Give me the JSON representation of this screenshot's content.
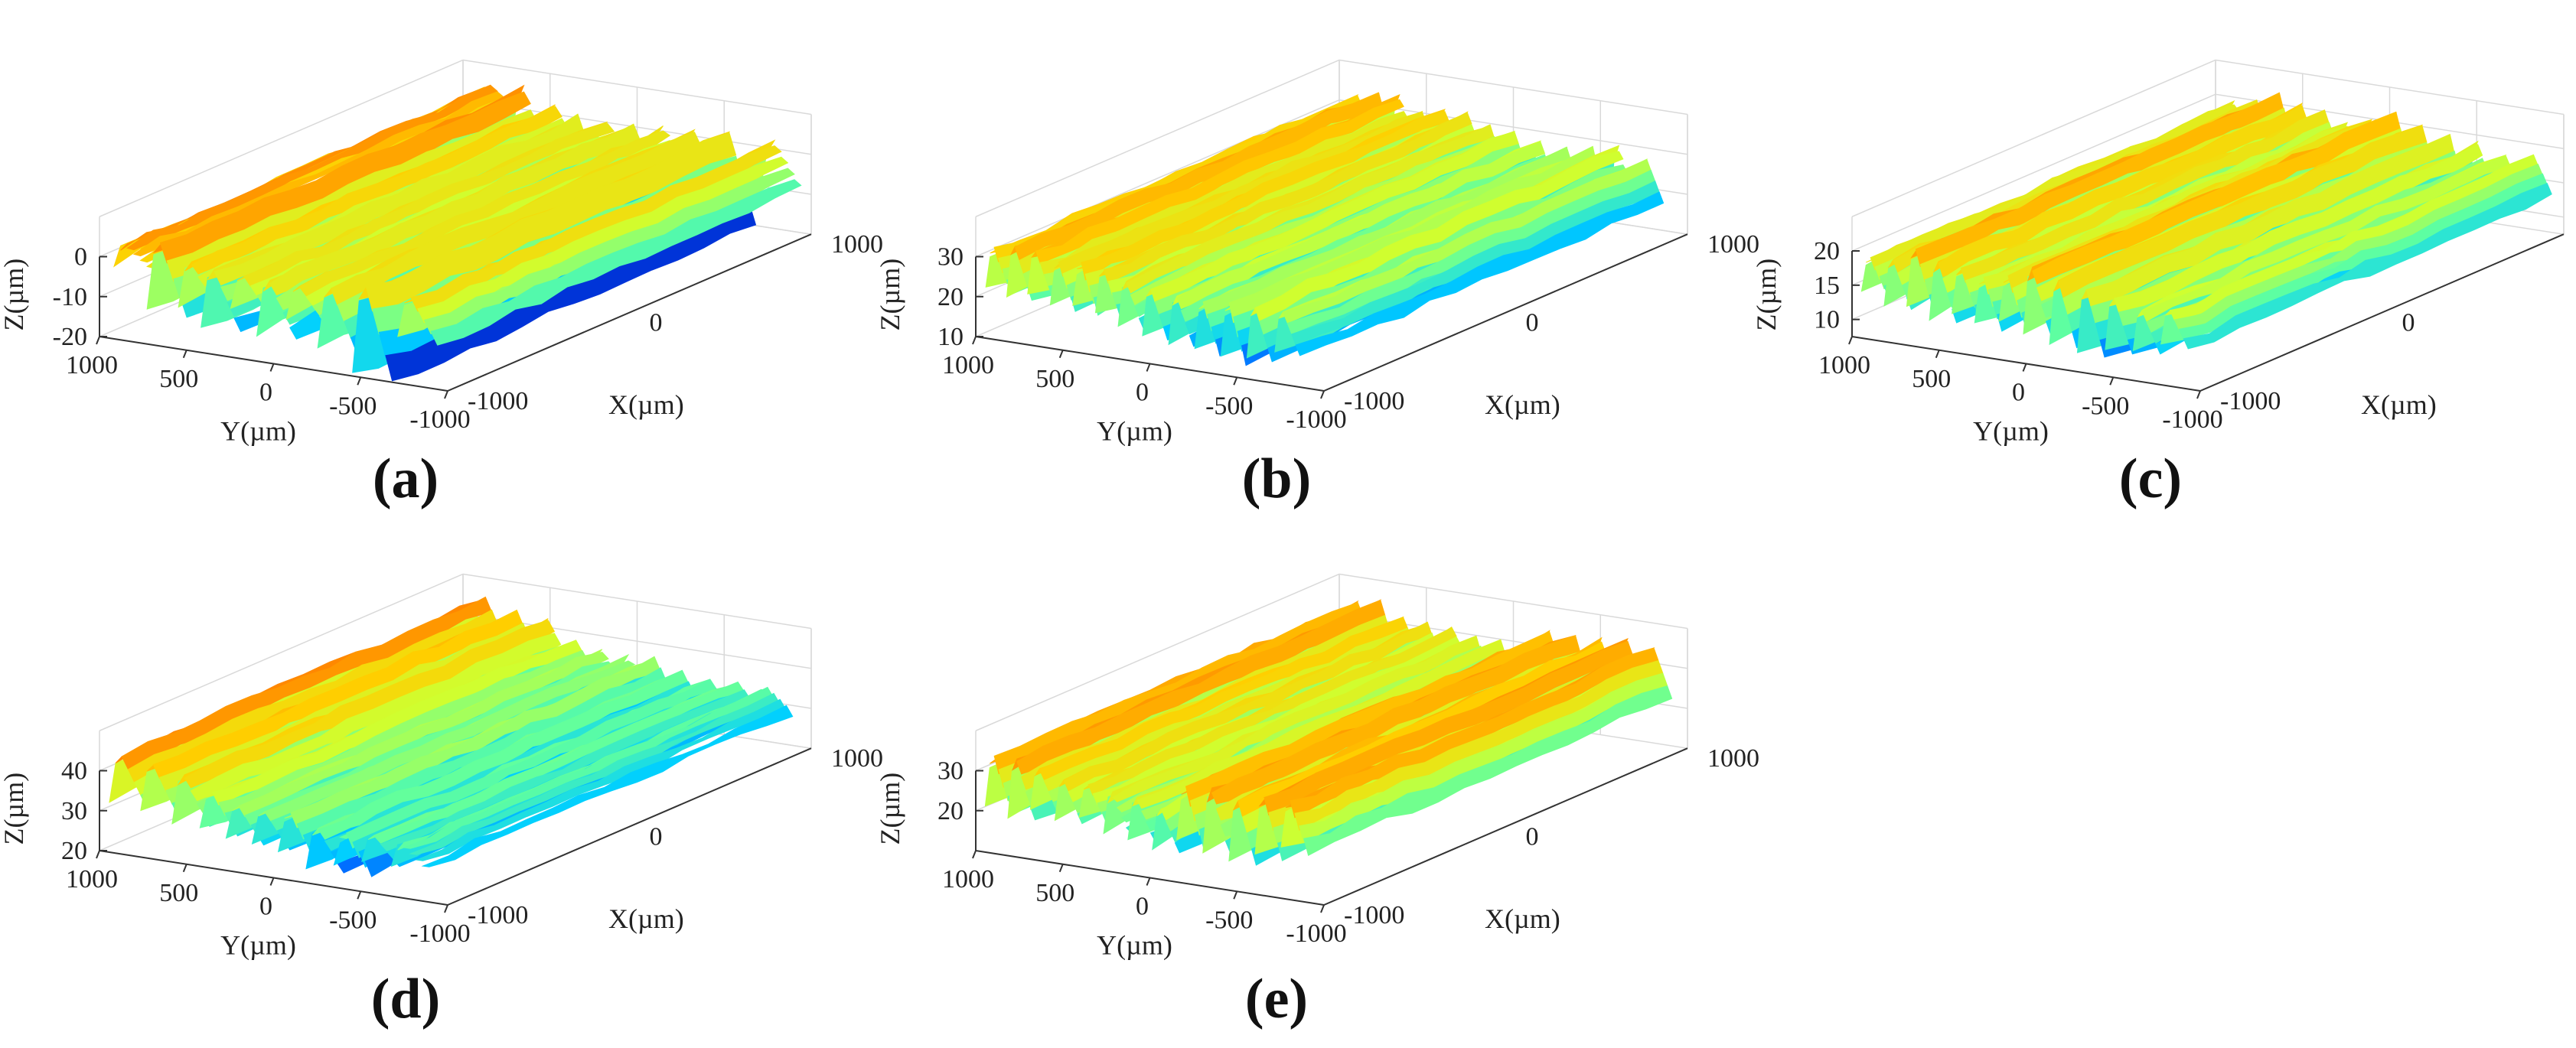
{
  "colormap": [
    "#00008f",
    "#0050ff",
    "#00cfff",
    "#60ff9f",
    "#cfff30",
    "#ffcf00",
    "#ff5a00",
    "#d40000"
  ],
  "chart_data": [
    {
      "type": "surface",
      "panel_label": "(a)",
      "xlabel": "X(µm)",
      "ylabel": "Y(µm)",
      "zlabel": "Z(µm)",
      "xlim": [
        -1000,
        1000
      ],
      "ylim": [
        -1000,
        1000
      ],
      "zlim": [
        -20,
        10
      ],
      "xticks": [
        {
          "v": -1000,
          "t": "-1000"
        },
        {
          "v": 0,
          "t": "0"
        },
        {
          "v": 1000,
          "t": "1000"
        }
      ],
      "yticks": [
        {
          "v": 1000,
          "t": "1000"
        },
        {
          "v": 500,
          "t": "500"
        },
        {
          "v": 0,
          "t": "0"
        },
        {
          "v": -500,
          "t": "-500"
        },
        {
          "v": -1000,
          "t": "-1000"
        }
      ],
      "zticks": [
        {
          "v": 0,
          "t": "0"
        },
        {
          "v": -10,
          "t": "-10"
        },
        {
          "v": -20,
          "t": "-20"
        }
      ],
      "ridges": [
        {
          "y": 850,
          "top": 5,
          "bottom": -1
        },
        {
          "y": 660,
          "top": 8,
          "bottom": -12
        },
        {
          "y": 480,
          "top": 4,
          "bottom": -9
        },
        {
          "y": 350,
          "top": 3,
          "bottom": -14
        },
        {
          "y": 180,
          "top": 2,
          "bottom": -8
        },
        {
          "y": 30,
          "top": 3,
          "bottom": -13
        },
        {
          "y": -140,
          "top": 2,
          "bottom": -8
        },
        {
          "y": -320,
          "top": 4,
          "bottom": -14
        },
        {
          "y": -520,
          "top": 6,
          "bottom": -20
        },
        {
          "y": -780,
          "top": 3,
          "bottom": -9
        }
      ]
    },
    {
      "type": "surface",
      "panel_label": "(b)",
      "xlabel": "X(µm)",
      "ylabel": "Y(µm)",
      "zlabel": "Z(µm)",
      "xlim": [
        -1000,
        1000
      ],
      "ylim": [
        -1000,
        1000
      ],
      "zlim": [
        10,
        40
      ],
      "xticks": [
        {
          "v": -1000,
          "t": "-1000"
        },
        {
          "v": 0,
          "t": "0"
        },
        {
          "v": 1000,
          "t": "1000"
        }
      ],
      "yticks": [
        {
          "v": 1000,
          "t": "1000"
        },
        {
          "v": 500,
          "t": "500"
        },
        {
          "v": 0,
          "t": "0"
        },
        {
          "v": -500,
          "t": "-500"
        },
        {
          "v": -1000,
          "t": "-1000"
        }
      ],
      "zticks": [
        {
          "v": 30,
          "t": "30"
        },
        {
          "v": 20,
          "t": "20"
        },
        {
          "v": 10,
          "t": "10"
        }
      ],
      "ridges": [
        {
          "y": 900,
          "top": 34,
          "bottom": 22
        },
        {
          "y": 780,
          "top": 36,
          "bottom": 21
        },
        {
          "y": 660,
          "top": 35,
          "bottom": 22
        },
        {
          "y": 530,
          "top": 33,
          "bottom": 20
        },
        {
          "y": 400,
          "top": 34,
          "bottom": 21
        },
        {
          "y": 270,
          "top": 33,
          "bottom": 20
        },
        {
          "y": 140,
          "top": 32,
          "bottom": 19
        },
        {
          "y": 0,
          "top": 31,
          "bottom": 17
        },
        {
          "y": -150,
          "top": 30,
          "bottom": 16
        },
        {
          "y": -300,
          "top": 29,
          "bottom": 15
        },
        {
          "y": -450,
          "top": 30,
          "bottom": 14
        },
        {
          "y": -600,
          "top": 31,
          "bottom": 16
        },
        {
          "y": -760,
          "top": 29,
          "bottom": 17
        }
      ]
    },
    {
      "type": "surface",
      "panel_label": "(c)",
      "xlabel": "X(µm)",
      "ylabel": "Y(µm)",
      "zlabel": "Z(µm)",
      "xlim": [
        -1000,
        1000
      ],
      "ylim": [
        -1000,
        1000
      ],
      "zlim": [
        7.5,
        25
      ],
      "xticks": [
        {
          "v": -1000,
          "t": "-1000"
        },
        {
          "v": 0,
          "t": "0"
        },
        {
          "v": 1000,
          "t": "1000"
        }
      ],
      "yticks": [
        {
          "v": 1000,
          "t": "1000"
        },
        {
          "v": 500,
          "t": "500"
        },
        {
          "v": 0,
          "t": "0"
        },
        {
          "v": -500,
          "t": "-500"
        },
        {
          "v": -1000,
          "t": "-1000"
        }
      ],
      "zticks": [
        {
          "v": 20,
          "t": "20"
        },
        {
          "v": 15,
          "t": "15"
        },
        {
          "v": 10,
          "t": "10"
        }
      ],
      "ridges": [
        {
          "y": 900,
          "top": 20,
          "bottom": 14
        },
        {
          "y": 770,
          "top": 21,
          "bottom": 13
        },
        {
          "y": 640,
          "top": 23,
          "bottom": 13
        },
        {
          "y": 510,
          "top": 22,
          "bottom": 12
        },
        {
          "y": 380,
          "top": 21,
          "bottom": 13
        },
        {
          "y": 250,
          "top": 20,
          "bottom": 12
        },
        {
          "y": 110,
          "top": 21,
          "bottom": 13
        },
        {
          "y": -30,
          "top": 23,
          "bottom": 12
        },
        {
          "y": -180,
          "top": 22,
          "bottom": 11
        },
        {
          "y": -340,
          "top": 21,
          "bottom": 10
        },
        {
          "y": -500,
          "top": 20,
          "bottom": 11
        },
        {
          "y": -660,
          "top": 19,
          "bottom": 12
        },
        {
          "y": -820,
          "top": 19,
          "bottom": 13
        }
      ]
    },
    {
      "type": "surface",
      "panel_label": "(d)",
      "xlabel": "X(µm)",
      "ylabel": "Y(µm)",
      "zlabel": "Z(µm)",
      "xlim": [
        -1000,
        1000
      ],
      "ylim": [
        -1000,
        1000
      ],
      "zlim": [
        20,
        50
      ],
      "xticks": [
        {
          "v": -1000,
          "t": "-1000"
        },
        {
          "v": 0,
          "t": "0"
        },
        {
          "v": 1000,
          "t": "1000"
        }
      ],
      "yticks": [
        {
          "v": 1000,
          "t": "1000"
        },
        {
          "v": 500,
          "t": "500"
        },
        {
          "v": 0,
          "t": "0"
        },
        {
          "v": -500,
          "t": "-500"
        },
        {
          "v": -1000,
          "t": "-1000"
        }
      ],
      "zticks": [
        {
          "v": 40,
          "t": "40"
        },
        {
          "v": 30,
          "t": "30"
        },
        {
          "v": 20,
          "t": "20"
        }
      ],
      "ridges": [
        {
          "y": 880,
          "top": 47,
          "bottom": 33
        },
        {
          "y": 700,
          "top": 45,
          "bottom": 31
        },
        {
          "y": 520,
          "top": 44,
          "bottom": 30
        },
        {
          "y": 360,
          "top": 40,
          "bottom": 29
        },
        {
          "y": 210,
          "top": 38,
          "bottom": 28
        },
        {
          "y": 60,
          "top": 37,
          "bottom": 27
        },
        {
          "y": -90,
          "top": 38,
          "bottom": 26
        },
        {
          "y": -250,
          "top": 36,
          "bottom": 24
        },
        {
          "y": -410,
          "top": 35,
          "bottom": 25
        },
        {
          "y": -570,
          "top": 35,
          "bottom": 27
        },
        {
          "y": -740,
          "top": 34,
          "bottom": 28
        }
      ]
    },
    {
      "type": "surface",
      "panel_label": "(e)",
      "xlabel": "X(µm)",
      "ylabel": "Y(µm)",
      "zlabel": "Z(µm)",
      "xlim": [
        -1000,
        1000
      ],
      "ylim": [
        -1000,
        1000
      ],
      "zlim": [
        10,
        40
      ],
      "xticks": [
        {
          "v": -1000,
          "t": "-1000"
        },
        {
          "v": 0,
          "t": "0"
        },
        {
          "v": 1000,
          "t": "1000"
        }
      ],
      "yticks": [
        {
          "v": 1000,
          "t": "1000"
        },
        {
          "v": 500,
          "t": "500"
        },
        {
          "v": 0,
          "t": "0"
        },
        {
          "v": -500,
          "t": "-500"
        },
        {
          "v": -1000,
          "t": "-1000"
        }
      ],
      "zticks": [
        {
          "v": 30,
          "t": "30"
        },
        {
          "v": 20,
          "t": "20"
        }
      ],
      "ridges": [
        {
          "y": 900,
          "top": 36,
          "bottom": 21
        },
        {
          "y": 770,
          "top": 37,
          "bottom": 20
        },
        {
          "y": 640,
          "top": 34,
          "bottom": 22
        },
        {
          "y": 500,
          "top": 33,
          "bottom": 21
        },
        {
          "y": 360,
          "top": 32,
          "bottom": 22
        },
        {
          "y": 220,
          "top": 31,
          "bottom": 20
        },
        {
          "y": 80,
          "top": 31,
          "bottom": 19
        },
        {
          "y": -60,
          "top": 30,
          "bottom": 18
        },
        {
          "y": -200,
          "top": 36,
          "bottom": 20
        },
        {
          "y": -350,
          "top": 37,
          "bottom": 19
        },
        {
          "y": -500,
          "top": 36,
          "bottom": 18
        },
        {
          "y": -650,
          "top": 37,
          "bottom": 20
        },
        {
          "y": -800,
          "top": 36,
          "bottom": 22
        }
      ]
    }
  ]
}
